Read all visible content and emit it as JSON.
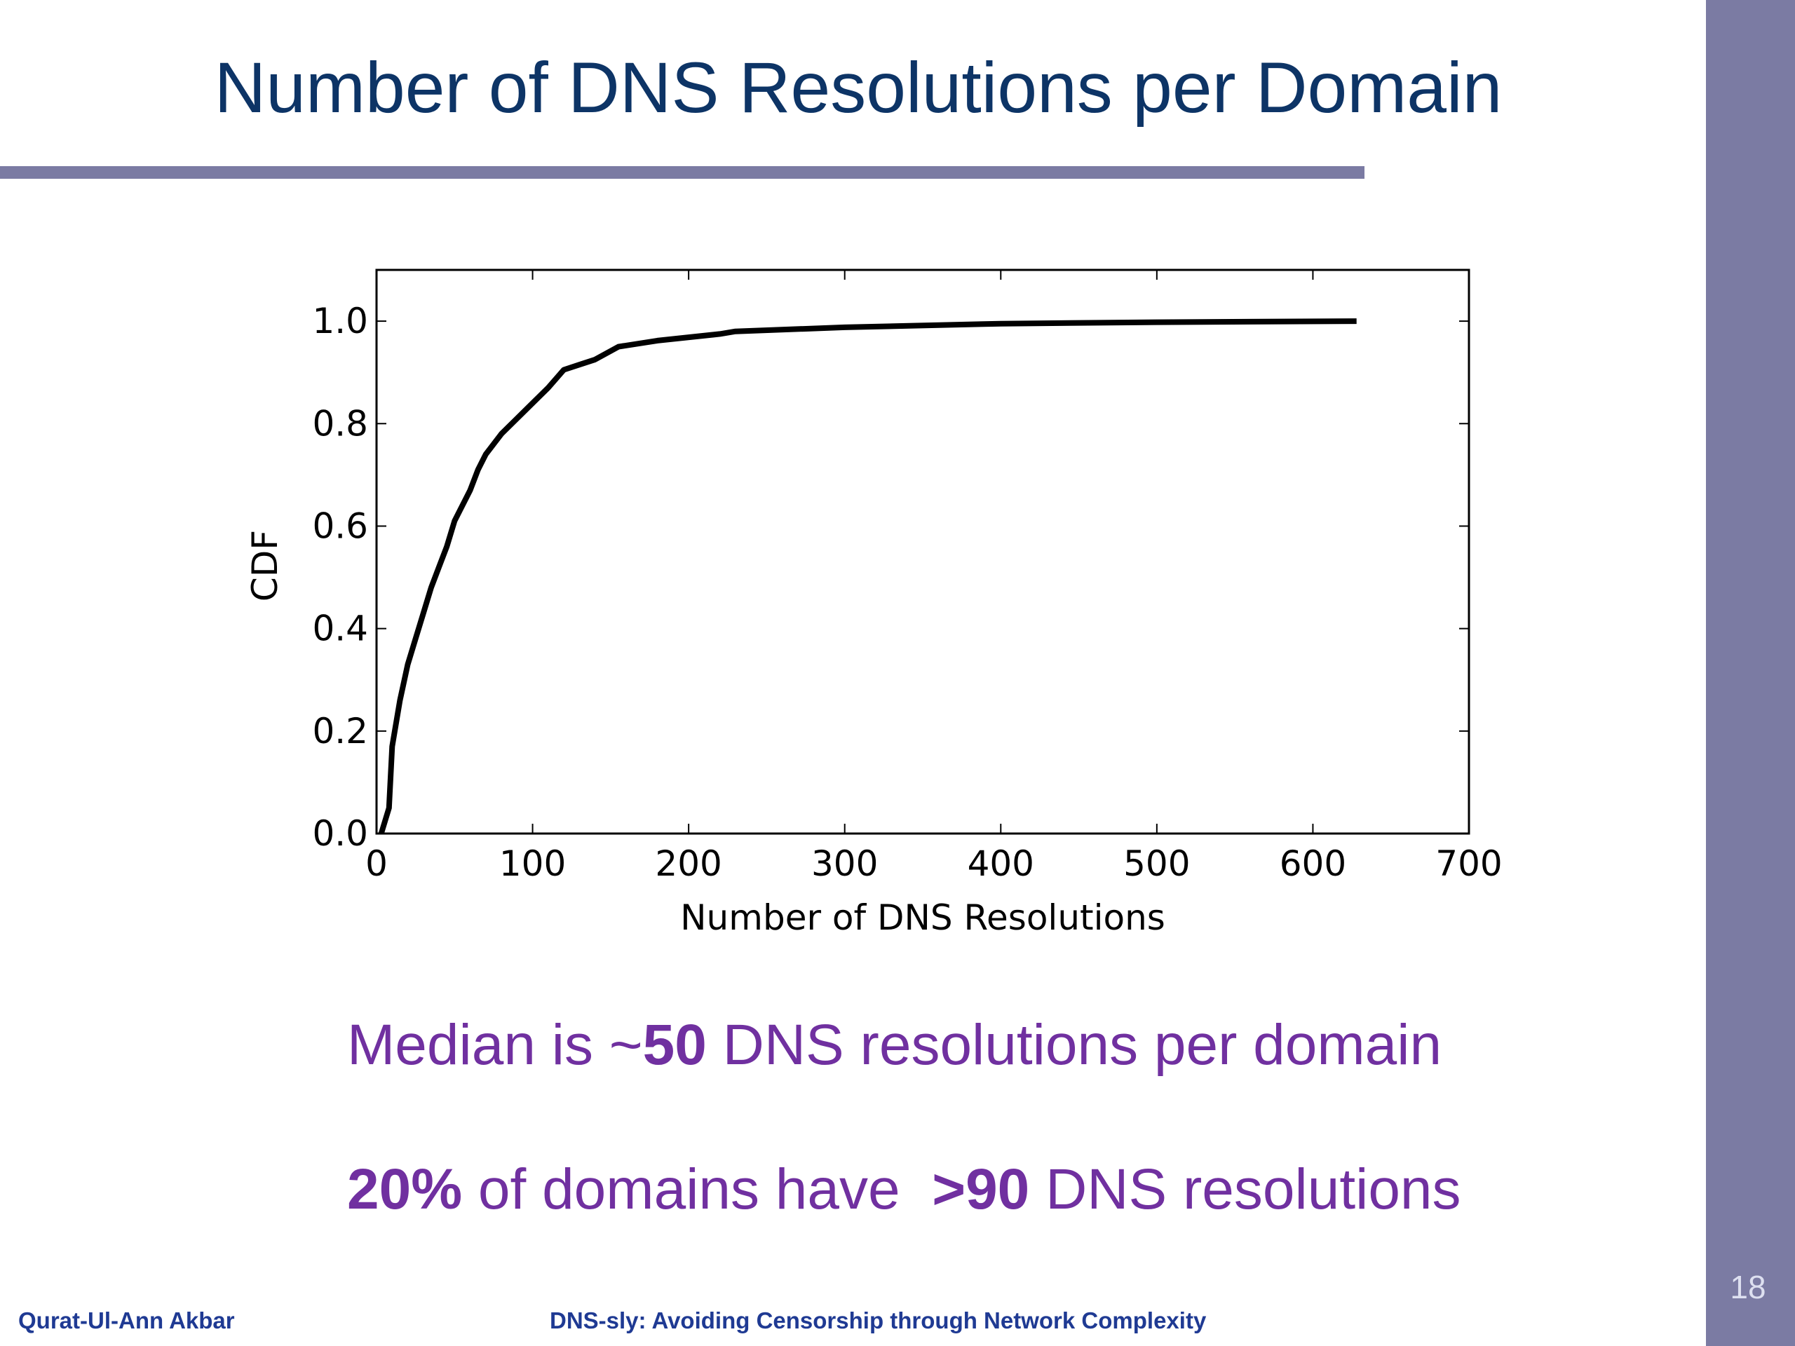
{
  "slide_title": "Number of DNS Resolutions per Domain",
  "chart_data": {
    "type": "line",
    "x_label": "Number of DNS Resolutions",
    "y_label": "CDF",
    "xlim": [
      0,
      700
    ],
    "ylim": [
      0,
      1.1
    ],
    "xticks": [
      0,
      100,
      200,
      300,
      400,
      500,
      600,
      700
    ],
    "yticks": [
      {
        "value": 0,
        "label": "0.0"
      },
      0.2,
      0.4,
      0.6,
      0.8,
      {
        "value": 1,
        "label": "1.0"
      }
    ],
    "grid": false,
    "series": [
      {
        "color": "#000000",
        "x": [
          3,
          8,
          10,
          15,
          20,
          25,
          30,
          35,
          40,
          45,
          50,
          55,
          60,
          65,
          70,
          80,
          90,
          100,
          110,
          120,
          130,
          140,
          155,
          180,
          220,
          230,
          300,
          400,
          500,
          628
        ],
        "values": [
          0,
          0.05,
          0.17,
          0.26,
          0.33,
          0.38,
          0.43,
          0.48,
          0.52,
          0.56,
          0.61,
          0.64,
          0.67,
          0.71,
          0.74,
          0.78,
          0.81,
          0.84,
          0.87,
          0.905,
          0.915,
          0.925,
          0.95,
          0.962,
          0.975,
          0.98,
          0.988,
          0.995,
          0.998,
          1.0
        ]
      }
    ]
  },
  "bullets": [
    {
      "runs": [
        {
          "text": "Median is ~",
          "bold": false
        },
        {
          "text": "50",
          "bold": true
        },
        {
          "text": " DNS resolutions per domain",
          "bold": false
        }
      ]
    },
    {
      "runs": [
        {
          "text": "20%",
          "bold": true
        },
        {
          "text": " of domains have  ",
          "bold": false
        },
        {
          "text": ">90",
          "bold": true
        },
        {
          "text": " DNS resolutions",
          "bold": false
        }
      ]
    }
  ],
  "footer": {
    "author": "Qurat-Ul-Ann Akbar",
    "talk": "DNS-sly: Avoiding Censorship through Network Complexity",
    "page": "18"
  }
}
